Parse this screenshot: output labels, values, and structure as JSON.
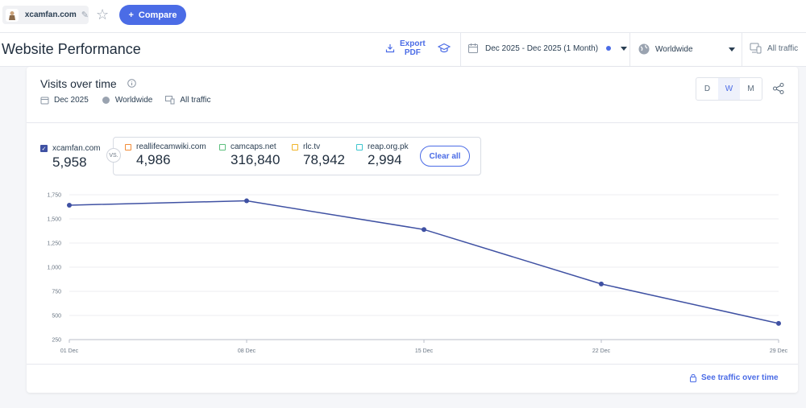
{
  "topbar": {
    "site": "xcamfan.com",
    "compare_label": "Compare",
    "compare_icon": "+"
  },
  "header": {
    "title": "Website Performance",
    "export_line1": "Export",
    "export_line2": "PDF",
    "date_range": "Dec 2025 - Dec 2025 (1 Month)",
    "country": "Worldwide",
    "traffic": "All traffic"
  },
  "card": {
    "title": "Visits over time",
    "meta_date": "Dec 2025",
    "meta_country": "Worldwide",
    "meta_traffic": "All traffic",
    "granularity": [
      "D",
      "W",
      "M"
    ],
    "granularity_selected": "W"
  },
  "legend": {
    "main": {
      "name": "xcamfan.com",
      "value": "5,958",
      "color": "#3f51a3"
    },
    "vs_label": "VS.",
    "competitors": [
      {
        "name": "reallifecamwiki.com",
        "value": "4,986",
        "color": "#f28c38"
      },
      {
        "name": "camcaps.net",
        "value": "316,840",
        "color": "#5cbf7d"
      },
      {
        "name": "rlc.tv",
        "value": "78,942",
        "color": "#f0b429"
      },
      {
        "name": "reap.org.pk",
        "value": "2,994",
        "color": "#3ec6cf"
      }
    ],
    "clear_label": "Clear all"
  },
  "chart_data": {
    "type": "line",
    "x": [
      "01 Dec",
      "08 Dec",
      "15 Dec",
      "22 Dec",
      "29 Dec"
    ],
    "series": [
      {
        "name": "xcamfan.com",
        "values": [
          1642,
          1687,
          1390,
          826,
          418
        ]
      }
    ],
    "yticks": [
      250,
      500,
      750,
      1000,
      1250,
      1500,
      1750
    ],
    "ytick_labels": [
      "250",
      "500",
      "750",
      "1,000",
      "1,250",
      "1,500",
      "1,750"
    ],
    "ylim": [
      250,
      1750
    ],
    "grid": true,
    "line_color": "#3f51a3"
  },
  "footer": {
    "link_label": "See traffic over time"
  }
}
